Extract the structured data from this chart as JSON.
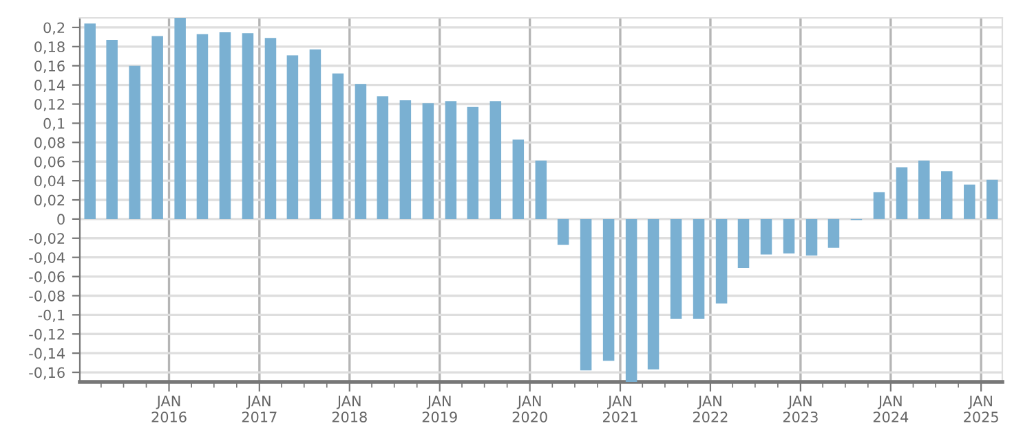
{
  "chart_data": {
    "type": "bar",
    "x": [
      "2015-02-15",
      "2015-05-15",
      "2015-08-15",
      "2015-11-15",
      "2016-02-15",
      "2016-05-15",
      "2016-08-15",
      "2016-11-15",
      "2017-02-15",
      "2017-05-15",
      "2017-08-15",
      "2017-11-15",
      "2018-02-15",
      "2018-05-15",
      "2018-08-15",
      "2018-11-15",
      "2019-02-15",
      "2019-05-15",
      "2019-08-15",
      "2019-11-15",
      "2020-02-15",
      "2020-05-15",
      "2020-08-15",
      "2020-11-15",
      "2021-02-15",
      "2021-05-15",
      "2021-08-15",
      "2021-11-15",
      "2022-02-15",
      "2022-05-15",
      "2022-08-15",
      "2022-11-15",
      "2023-02-15",
      "2023-05-15",
      "2023-08-15",
      "2023-11-15",
      "2024-02-15",
      "2024-05-15",
      "2024-08-15",
      "2024-11-15",
      "2025-02-15"
    ],
    "values": [
      0.204,
      0.187,
      0.16,
      0.191,
      0.21,
      0.193,
      0.195,
      0.194,
      0.189,
      0.171,
      0.177,
      0.152,
      0.141,
      0.128,
      0.124,
      0.121,
      0.123,
      0.117,
      0.123,
      0.083,
      0.061,
      -0.027,
      -0.158,
      -0.148,
      -0.17,
      -0.157,
      -0.104,
      -0.104,
      -0.088,
      -0.051,
      -0.037,
      -0.036,
      -0.038,
      -0.03,
      -0.001,
      0.028,
      0.054,
      0.061,
      0.05,
      0.036,
      0.041
    ],
    "color": "#7ab0d2",
    "xlim": [
      "2015-01-05",
      "2025-03-28"
    ],
    "xticks": [
      {
        "value": "2015-04-01",
        "label": null
      },
      {
        "value": "2015-07-01",
        "label": null
      },
      {
        "value": "2015-10-01",
        "label": null
      },
      {
        "value": "2016-01-01",
        "label": "JAN\n2016"
      },
      {
        "value": "2016-04-01",
        "label": null
      },
      {
        "value": "2016-07-01",
        "label": null
      },
      {
        "value": "2016-10-01",
        "label": null
      },
      {
        "value": "2017-01-01",
        "label": "JAN\n2017"
      },
      {
        "value": "2017-04-01",
        "label": null
      },
      {
        "value": "2017-07-01",
        "label": null
      },
      {
        "value": "2017-10-01",
        "label": null
      },
      {
        "value": "2018-01-01",
        "label": "JAN\n2018"
      },
      {
        "value": "2018-04-01",
        "label": null
      },
      {
        "value": "2018-07-01",
        "label": null
      },
      {
        "value": "2018-10-01",
        "label": null
      },
      {
        "value": "2019-01-01",
        "label": "JAN\n2019"
      },
      {
        "value": "2019-04-01",
        "label": null
      },
      {
        "value": "2019-07-01",
        "label": null
      },
      {
        "value": "2019-10-01",
        "label": null
      },
      {
        "value": "2020-01-01",
        "label": "JAN\n2020"
      },
      {
        "value": "2020-04-01",
        "label": null
      },
      {
        "value": "2020-07-01",
        "label": null
      },
      {
        "value": "2020-10-01",
        "label": null
      },
      {
        "value": "2021-01-01",
        "label": "JAN\n2021"
      },
      {
        "value": "2021-04-01",
        "label": null
      },
      {
        "value": "2021-07-01",
        "label": null
      },
      {
        "value": "2021-10-01",
        "label": null
      },
      {
        "value": "2022-01-01",
        "label": "JAN\n2022"
      },
      {
        "value": "2022-04-01",
        "label": null
      },
      {
        "value": "2022-07-01",
        "label": null
      },
      {
        "value": "2022-10-01",
        "label": null
      },
      {
        "value": "2023-01-01",
        "label": "JAN\n2023"
      },
      {
        "value": "2023-04-01",
        "label": null
      },
      {
        "value": "2023-07-01",
        "label": null
      },
      {
        "value": "2023-10-01",
        "label": null
      },
      {
        "value": "2024-01-01",
        "label": "JAN\n2024"
      },
      {
        "value": "2024-04-01",
        "label": null
      },
      {
        "value": "2024-07-01",
        "label": null
      },
      {
        "value": "2024-10-01",
        "label": null
      },
      {
        "value": "2025-01-01",
        "label": "JAN\n2025"
      }
    ],
    "ylim": [
      -0.17,
      0.21
    ],
    "yticks": [
      {
        "value": 0.2,
        "label": "0,2"
      },
      {
        "value": 0.18,
        "label": "0,18"
      },
      {
        "value": 0.16,
        "label": "0,16"
      },
      {
        "value": 0.14,
        "label": "0,14"
      },
      {
        "value": 0.12,
        "label": "0,12"
      },
      {
        "value": 0.1,
        "label": "0,1"
      },
      {
        "value": 0.08,
        "label": "0,08"
      },
      {
        "value": 0.06,
        "label": "0,06"
      },
      {
        "value": 0.04,
        "label": "0,04"
      },
      {
        "value": 0.02,
        "label": "0,02"
      },
      {
        "value": 0,
        "label": "0"
      },
      {
        "value": -0.02,
        "label": "-0,02"
      },
      {
        "value": -0.04,
        "label": "-0,04"
      },
      {
        "value": -0.06,
        "label": "-0,06"
      },
      {
        "value": -0.08,
        "label": "-0,08"
      },
      {
        "value": -0.1,
        "label": "-0,1"
      },
      {
        "value": -0.12,
        "label": "-0,12"
      },
      {
        "value": -0.14,
        "label": "-0,14"
      },
      {
        "value": -0.16,
        "label": "-0,16"
      }
    ],
    "grid": true
  }
}
